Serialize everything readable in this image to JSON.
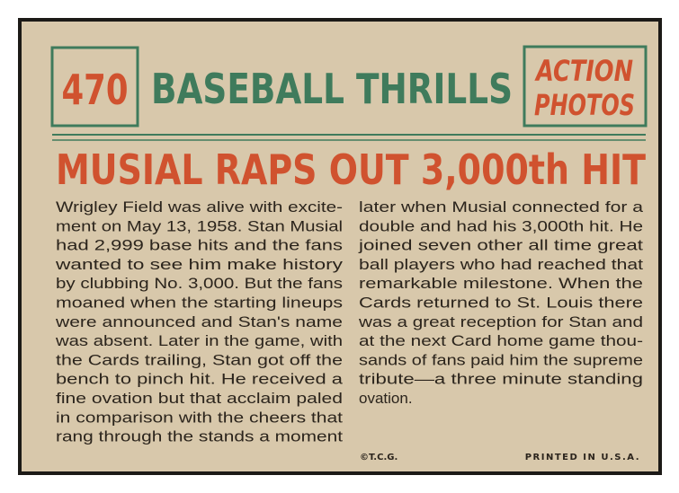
{
  "card": {
    "number": "470",
    "title": "BASEBALL THRILLS",
    "badge": [
      "ACTION",
      "PHOTOS"
    ],
    "headline": "MUSIAL RAPS OUT 3,000th HIT",
    "body": {
      "left": [
        "Wrigley Field was alive with excite-",
        "ment on May 13, 1958. Stan Musial",
        "had 2,999 base hits and the fans",
        "wanted to see him make history",
        "by clubbing No. 3,000. But the fans",
        "moaned when the starting lineups",
        "were announced and Stan's name",
        "was absent. Later in the game, with",
        "the Cards trailing, Stan got off the",
        "bench to pinch hit. He received a",
        "fine ovation but that acclaim paled",
        "in comparison with the cheers that",
        "rang through the stands a moment"
      ],
      "right": [
        "later when Musial connected for a",
        "double and had his 3,000th hit. He",
        "joined seven other all time great",
        "ball players who had reached that",
        "remarkable milestone. When the",
        "Cards returned to St. Louis there",
        "was a great reception for Stan and",
        "at the next Card home game thou-",
        "sands of fans paid him the supreme",
        "tribute—a three minute standing",
        "ovation."
      ]
    },
    "copyright": "©T.C.G.",
    "printed": "PRINTED IN U.S.A."
  }
}
